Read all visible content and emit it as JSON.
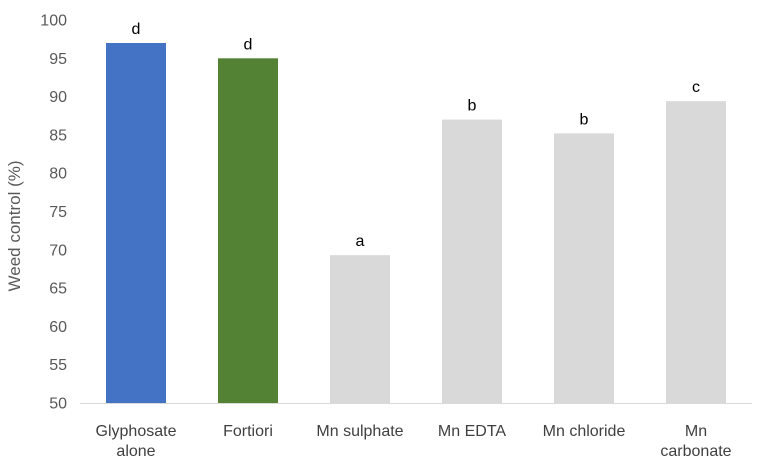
{
  "chart_data": {
    "type": "bar",
    "title": "",
    "xlabel": "",
    "ylabel": "Weed control (%)",
    "ylim": [
      50,
      100
    ],
    "yticks": [
      "50",
      "55",
      "60",
      "65",
      "70",
      "75",
      "80",
      "85",
      "90",
      "95",
      "100"
    ],
    "grid": false,
    "legend": "none",
    "categories": [
      [
        "Glyphosate",
        "alone"
      ],
      [
        "Fortiori"
      ],
      [
        "Mn sulphate"
      ],
      [
        "Mn EDTA"
      ],
      [
        "Mn chloride"
      ],
      [
        "Mn",
        "carbonate"
      ]
    ],
    "values": [
      97,
      95,
      69.3,
      87,
      85.2,
      89.4
    ],
    "letters": [
      "d",
      "d",
      "a",
      "b",
      "b",
      "c"
    ],
    "colors": [
      "#4472C4",
      "#548235",
      "#D9D9D9",
      "#D9D9D9",
      "#D9D9D9",
      "#D9D9D9"
    ],
    "axis_color": "#D9D9D9"
  }
}
